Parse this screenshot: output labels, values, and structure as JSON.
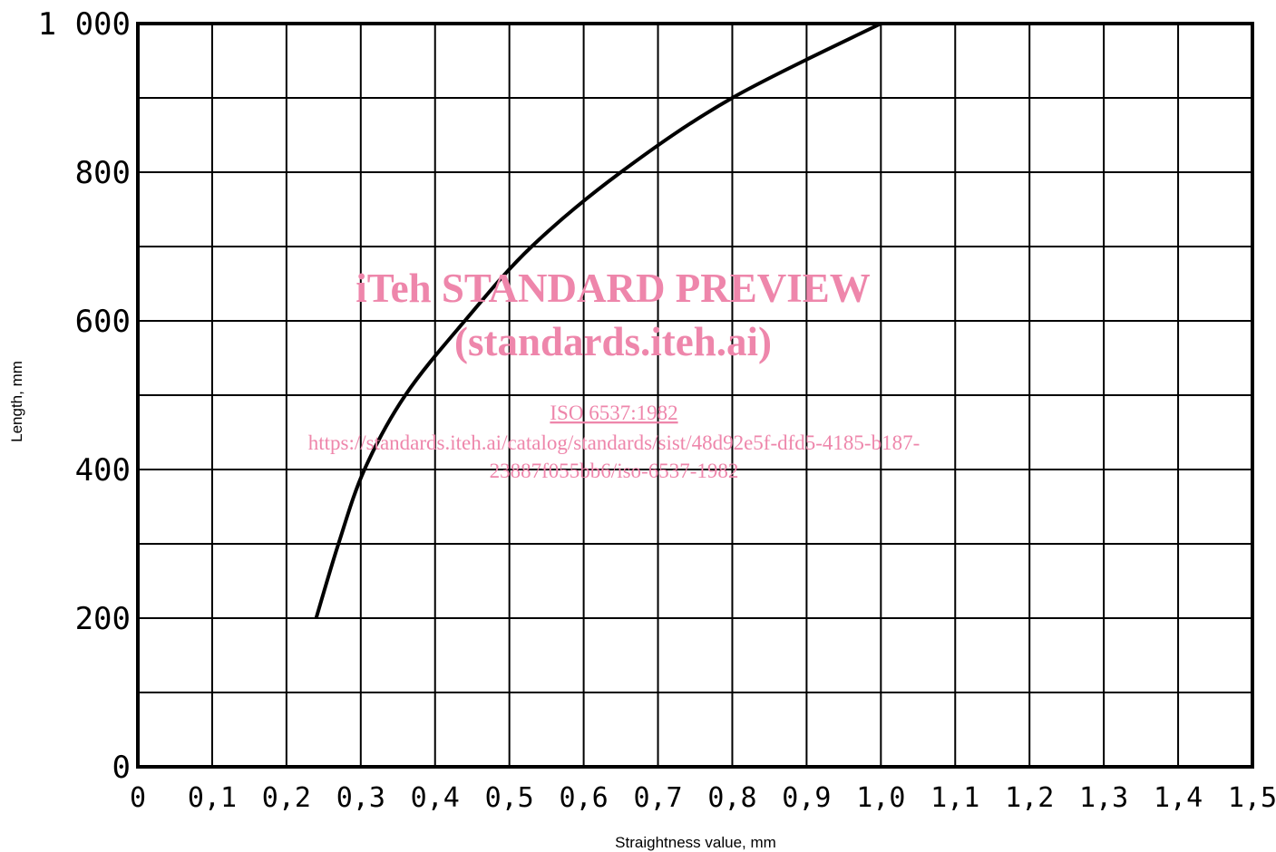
{
  "chart_data": {
    "type": "line",
    "title": "",
    "xlabel": "Straightness value, mm",
    "ylabel": "Length, mm",
    "xlim": [
      0,
      1.5
    ],
    "ylim": [
      0,
      1000
    ],
    "x_ticks": [
      "0",
      "0,1",
      "0,2",
      "0,3",
      "0,4",
      "0,5",
      "0,6",
      "0,7",
      "0,8",
      "0,9",
      "1,0",
      "1,1",
      "1,2",
      "1,3",
      "1,4",
      "1,5"
    ],
    "y_ticks": [
      "0",
      "",
      "200",
      "",
      "400",
      "",
      "600",
      "",
      "800",
      "",
      "1 000"
    ],
    "grid": true,
    "series": [
      {
        "color": "#000000",
        "points": [
          [
            0.24,
            200
          ],
          [
            0.27,
            300
          ],
          [
            0.305,
            400
          ],
          [
            0.36,
            500
          ],
          [
            0.44,
            600
          ],
          [
            0.53,
            700
          ],
          [
            0.65,
            800
          ],
          [
            0.8,
            900
          ],
          [
            1.0,
            1000
          ]
        ]
      }
    ]
  },
  "watermark": {
    "title": "iTeh STANDARD PREVIEW",
    "subtitle": "(standards.iteh.ai)",
    "standard": "ISO 6537:1982",
    "url_line1": "https://standards.iteh.ai/catalog/standards/sist/48d92e5f-dfd5-4185-b187-",
    "url_line2": "23887f055bb6/iso-6537-1982",
    "color": "#ee86ab"
  }
}
